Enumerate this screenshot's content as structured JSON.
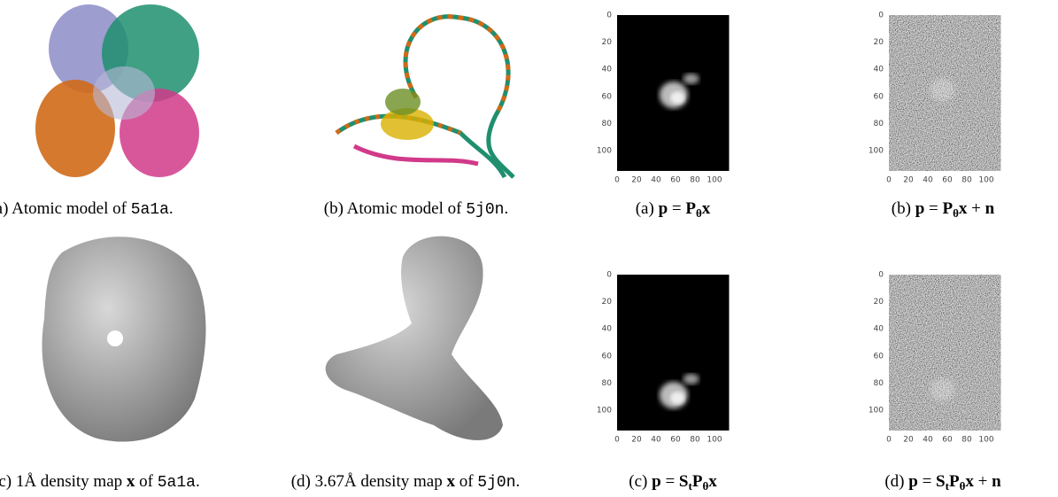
{
  "left_figure": {
    "panels": [
      {
        "caption": [
          {
            "text": "(a) Atomic model of ",
            "style": "plain"
          },
          {
            "text": "5a1a",
            "style": "mono"
          },
          {
            "text": ".",
            "style": "plain"
          }
        ]
      },
      {
        "caption": [
          {
            "text": "(b) Atomic model of ",
            "style": "plain"
          },
          {
            "text": "5j0n",
            "style": "mono"
          },
          {
            "text": ".",
            "style": "plain"
          }
        ]
      },
      {
        "caption": [
          {
            "text": "c) 1Å density map ",
            "style": "plain"
          },
          {
            "text": "x",
            "style": "bold"
          },
          {
            "text": " of ",
            "style": "plain"
          },
          {
            "text": "5a1a",
            "style": "mono"
          },
          {
            "text": ".",
            "style": "plain"
          }
        ]
      },
      {
        "caption": [
          {
            "text": "(d) 3.67Å density map ",
            "style": "plain"
          },
          {
            "text": "x",
            "style": "bold"
          },
          {
            "text": " of ",
            "style": "plain"
          },
          {
            "text": "5j0n",
            "style": "mono"
          },
          {
            "text": ".",
            "style": "plain"
          }
        ]
      }
    ]
  },
  "right_figure": {
    "axes": {
      "xlim": [
        0,
        115
      ],
      "ylim": [
        0,
        115
      ],
      "xticks": [
        0,
        20,
        40,
        60,
        80,
        100
      ],
      "yticks": [
        0,
        20,
        40,
        60,
        80,
        100
      ]
    },
    "panels": [
      {
        "caption": [
          {
            "text": "(a) ",
            "style": "plain"
          },
          {
            "text": "p",
            "style": "bold"
          },
          {
            "text": " = ",
            "style": "plain"
          },
          {
            "text": "P",
            "style": "bold"
          },
          {
            "text": "θ",
            "style": "sub"
          },
          {
            "text": "x",
            "style": "bold"
          }
        ]
      },
      {
        "caption": [
          {
            "text": "(b) ",
            "style": "plain"
          },
          {
            "text": "p",
            "style": "bold"
          },
          {
            "text": " = ",
            "style": "plain"
          },
          {
            "text": "P",
            "style": "bold"
          },
          {
            "text": "θ",
            "style": "sub"
          },
          {
            "text": "x",
            "style": "bold"
          },
          {
            "text": " + ",
            "style": "plain"
          },
          {
            "text": "n",
            "style": "bold"
          }
        ]
      },
      {
        "caption": [
          {
            "text": "(c) ",
            "style": "plain"
          },
          {
            "text": "p",
            "style": "bold"
          },
          {
            "text": " = ",
            "style": "plain"
          },
          {
            "text": "S",
            "style": "bold"
          },
          {
            "text": "t",
            "style": "sub"
          },
          {
            "text": "P",
            "style": "bold"
          },
          {
            "text": "θ",
            "style": "sub"
          },
          {
            "text": "x",
            "style": "bold"
          }
        ]
      },
      {
        "caption": [
          {
            "text": "(d) ",
            "style": "plain"
          },
          {
            "text": "p",
            "style": "bold"
          },
          {
            "text": " = ",
            "style": "plain"
          },
          {
            "text": "S",
            "style": "bold"
          },
          {
            "text": "t",
            "style": "sub"
          },
          {
            "text": "P",
            "style": "bold"
          },
          {
            "text": "θ",
            "style": "sub"
          },
          {
            "text": "x",
            "style": "bold"
          },
          {
            "text": " + ",
            "style": "plain"
          },
          {
            "text": "n",
            "style": "bold"
          }
        ]
      }
    ]
  }
}
